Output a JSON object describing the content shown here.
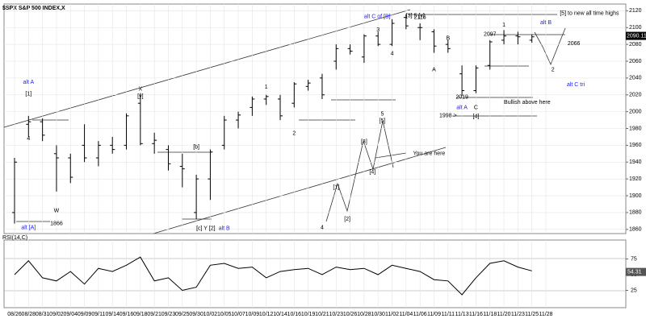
{
  "chart_data": {
    "type": "ohlc",
    "title": "$SPX S&P 500 INDEX,X",
    "color": "#000000",
    "grid": true,
    "categories": [
      "08/26",
      "08/28",
      "08/31",
      "09/02",
      "09/04",
      "09/09",
      "09/11",
      "09/14",
      "09/16",
      "09/18",
      "09/21",
      "09/23",
      "09/25",
      "09/30",
      "10/02",
      "10/05",
      "10/07",
      "10/09",
      "10/12",
      "10/14",
      "10/16",
      "10/19",
      "10/21",
      "10/23",
      "10/26",
      "10/28",
      "10/30",
      "11/02",
      "11/04",
      "11/06",
      "11/09",
      "11/11",
      "11/13",
      "11/16",
      "11/18",
      "11/20",
      "11/23",
      "11/25",
      "11/28"
    ],
    "open": [
      1880,
      1985,
      1988,
      1950,
      1945,
      1960,
      1945,
      1960,
      1960,
      2010,
      1962,
      1955,
      1935,
      1880,
      1920,
      1960,
      1990,
      2005,
      2015,
      2015,
      2010,
      2030,
      2040,
      2060,
      2075,
      2065,
      2090,
      2080,
      2112,
      2100,
      2095,
      2080,
      2045,
      2025,
      2055,
      2085,
      2090,
      2085,
      null
    ],
    "high": [
      1945,
      1995,
      1992,
      1960,
      1950,
      1985,
      1965,
      1970,
      1998,
      2022,
      1975,
      1960,
      1950,
      1925,
      1955,
      1995,
      2000,
      2018,
      2020,
      2020,
      2035,
      2038,
      2045,
      2080,
      2080,
      2092,
      2095,
      2110,
      2116,
      2105,
      2098,
      2085,
      2055,
      2055,
      2085,
      2097,
      2095,
      2092,
      null
    ],
    "low": [
      1867,
      1970,
      1965,
      1905,
      1915,
      1940,
      1935,
      1950,
      1955,
      1960,
      1950,
      1930,
      1910,
      1872,
      1895,
      1955,
      1980,
      1995,
      2008,
      1990,
      2005,
      2025,
      2015,
      2050,
      2068,
      2058,
      2078,
      2078,
      2098,
      2085,
      2070,
      2070,
      2019,
      2022,
      2050,
      2080,
      2080,
      2082,
      null
    ],
    "close": [
      1940,
      1988,
      1972,
      1945,
      1922,
      1945,
      1960,
      1955,
      1995,
      1962,
      1966,
      1938,
      1932,
      1920,
      1952,
      1990,
      1996,
      2015,
      2018,
      1995,
      2033,
      2034,
      2020,
      2075,
      2072,
      2090,
      2080,
      2105,
      2102,
      2100,
      2078,
      2075,
      2025,
      2052,
      2083,
      2090,
      2089,
      2089,
      null
    ],
    "ylim": [
      1855,
      2128
    ],
    "yticks": [
      1860,
      1880,
      1900,
      1920,
      1940,
      1960,
      1980,
      2000,
      2020,
      2040,
      2060,
      2080,
      2100,
      2120
    ],
    "last_close": 2090.11,
    "indicator": {
      "type": "line",
      "name": "RSI(14,C)",
      "color": "#000000",
      "values": [
        50,
        72,
        45,
        40,
        55,
        35,
        60,
        55,
        65,
        78,
        40,
        45,
        25,
        30,
        65,
        68,
        60,
        62,
        45,
        55,
        58,
        60,
        50,
        62,
        58,
        60,
        50,
        65,
        60,
        55,
        42,
        40,
        18,
        45,
        68,
        72,
        62,
        56,
        null
      ],
      "ylim": [
        0,
        100
      ],
      "yticks": [
        25,
        50,
        75
      ],
      "last": 54.31
    },
    "annotations": [
      {
        "text": "alt A",
        "at": 1,
        "price": 2035,
        "color": "#1a1aff"
      },
      {
        "text": "[1]",
        "at": 1,
        "price": 2021
      },
      {
        "text": "4",
        "at": 1,
        "price": 1968
      },
      {
        "text": "W",
        "at": 3,
        "price": 1882
      },
      {
        "text": "alt [A]",
        "at": 1,
        "price": 1862,
        "color": "#1a1aff"
      },
      {
        "text": "1866",
        "at": 3,
        "price": 1867
      },
      {
        "text": "X",
        "at": 9,
        "price": 2027
      },
      {
        "text": "[y]",
        "at": 9,
        "price": 2018
      },
      {
        "text": "[b]",
        "at": 13,
        "price": 1958
      },
      {
        "text": "[c] Y [2]",
        "at": 13,
        "price": 1861
      },
      {
        "text": "alt B",
        "at": 15,
        "price": 1861,
        "color": "#1a1aff"
      },
      {
        "text": "1",
        "at": 18,
        "price": 2029
      },
      {
        "text": "2",
        "at": 20,
        "price": 1974
      },
      {
        "text": "4",
        "at": 22,
        "price": 1862
      },
      {
        "text": "alt C of [B]",
        "at": 25,
        "price": 2113,
        "color": "#1a1aff"
      },
      {
        "text": "3",
        "at": 26,
        "price": 2097
      },
      {
        "text": "[3] 5 [v]",
        "at": 28,
        "price": 2114
      },
      {
        "text": "4",
        "at": 27,
        "price": 2069
      },
      {
        "text": "2116",
        "at": 29,
        "price": 2112
      },
      {
        "text": "B",
        "at": 31,
        "price": 2087
      },
      {
        "text": "A",
        "at": 30,
        "price": 2050
      },
      {
        "text": "2019",
        "at": 32,
        "price": 2017
      },
      {
        "text": "alt A",
        "at": 32,
        "price": 2005,
        "color": "#1a1aff"
      },
      {
        "text": "C",
        "at": 33,
        "price": 2005
      },
      {
        "text": "1998 >",
        "at": 31,
        "price": 1995
      },
      {
        "text": "[4]",
        "at": 33,
        "price": 1994
      },
      {
        "text": "Bullish above here",
        "at": 35,
        "price": 2011
      },
      {
        "text": "2097",
        "at": 34,
        "price": 2092
      },
      {
        "text": "1",
        "at": 35,
        "price": 2103
      },
      {
        "text": "alt B",
        "at": 38,
        "price": 2106,
        "color": "#1a1aff"
      },
      {
        "text": "[5] to new all time highs",
        "at": 39,
        "price": 2117
      },
      {
        "text": "2066",
        "at": 40,
        "price": 2081
      },
      {
        "text": "2",
        "at": 38.5,
        "price": 2050
      },
      {
        "text": "alt C tri",
        "at": 39.5,
        "price": 2032,
        "color": "#1a1aff"
      },
      {
        "text": "[1]",
        "at": 23,
        "price": 1910
      },
      {
        "text": "[2]",
        "at": 23.8,
        "price": 1872
      },
      {
        "text": "[3]",
        "at": 25,
        "price": 1964
      },
      {
        "text": "[4]",
        "at": 25.6,
        "price": 1928
      },
      {
        "text": "5",
        "at": 26.3,
        "price": 1997
      },
      {
        "text": "[5]",
        "at": 26.3,
        "price": 1989
      },
      {
        "text": "You are here",
        "at": 28.5,
        "price": 1950
      }
    ]
  }
}
